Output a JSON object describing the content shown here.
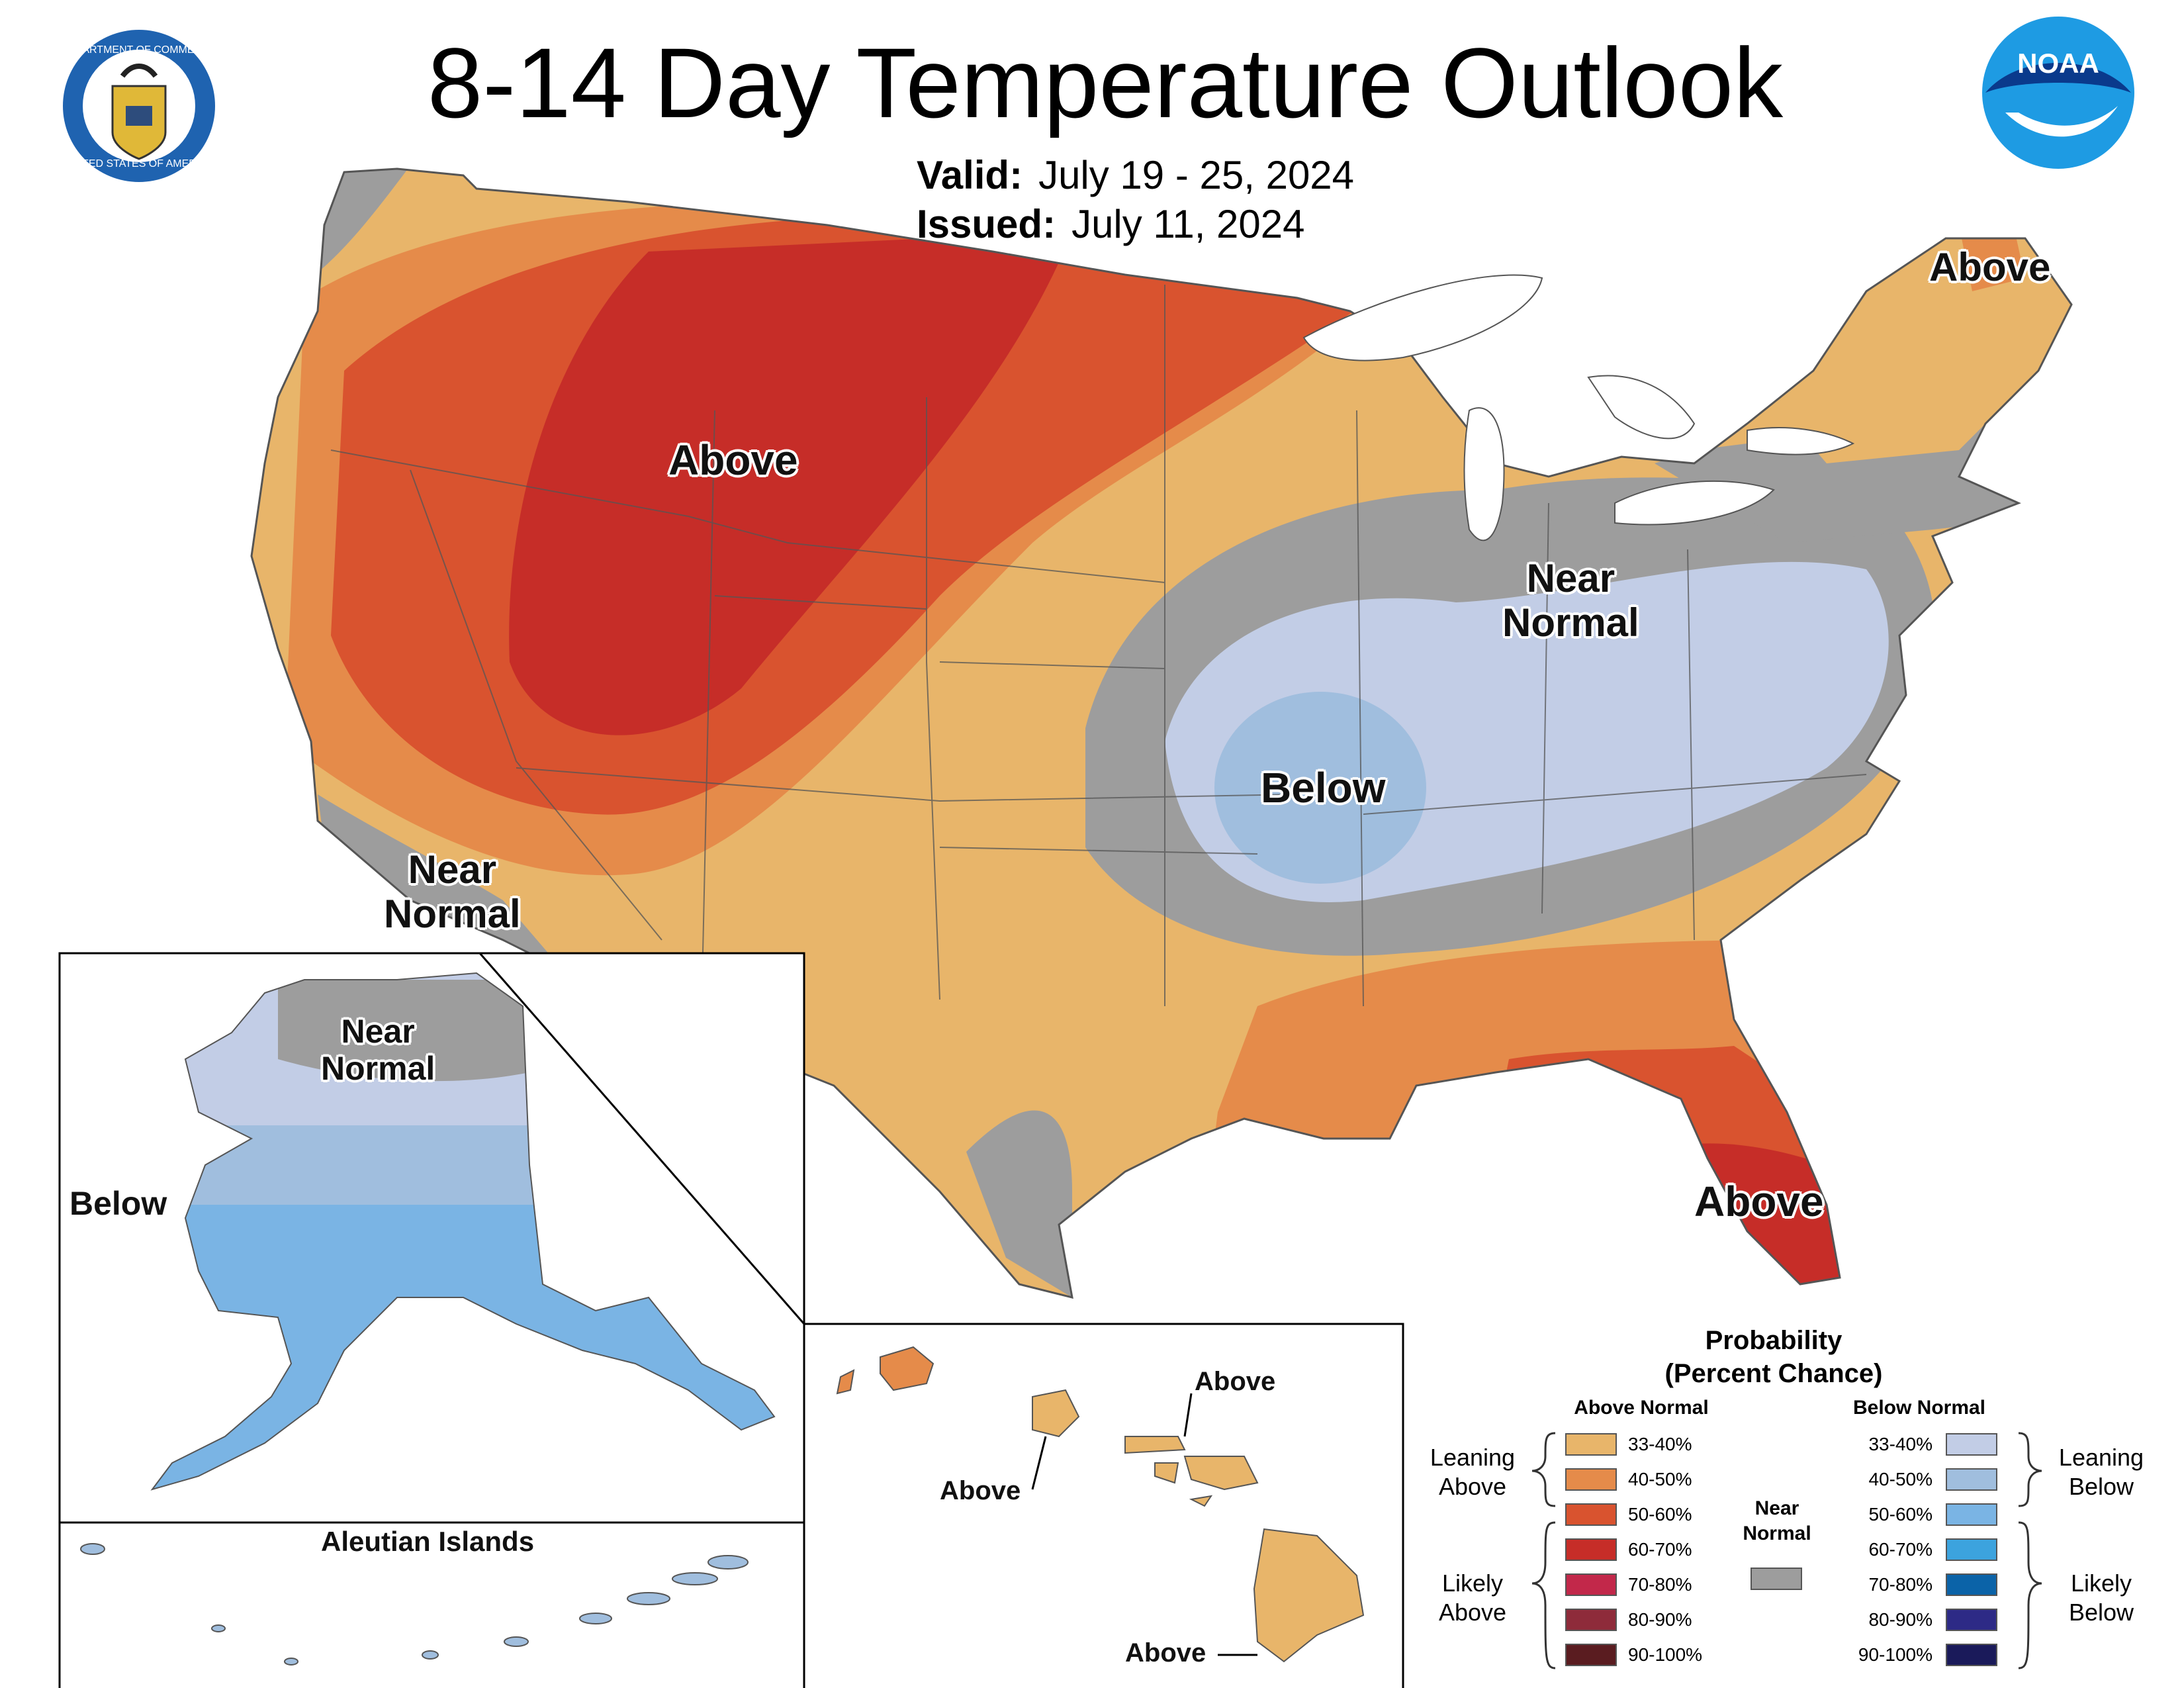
{
  "header": {
    "title": "8-14 Day Temperature Outlook",
    "valid_label": "Valid:",
    "valid_value": "July 19 - 25, 2024",
    "issued_label": "Issued:",
    "issued_value": "July 11, 2024"
  },
  "logos": {
    "commerce_top": "DEPARTMENT OF COMMERCE",
    "commerce_bottom": "UNITED STATES OF AMERICA",
    "noaa": "NOAA"
  },
  "conus_labels": {
    "northwest_above": "Above",
    "southwest_near_1": "Near",
    "southwest_near_2": "Normal",
    "midwest_near_1": "Near",
    "midwest_near_2": "Normal",
    "central_below": "Below",
    "florida_above": "Above",
    "maine_above": "Above"
  },
  "alaska_labels": {
    "north_near_1": "Near",
    "north_near_2": "Normal",
    "west_below": "Below"
  },
  "aleutian_title": "Aleutian Islands",
  "hawaii_labels": {
    "oahu_above": "Above",
    "maui_above": "Above",
    "bigisland_above": "Above"
  },
  "legend": {
    "title_1": "Probability",
    "title_2": "(Percent Chance)",
    "above_header": "Above Normal",
    "below_header": "Below Normal",
    "near_header_1": "Near",
    "near_header_2": "Normal",
    "leaning_above_1": "Leaning",
    "leaning_above_2": "Above",
    "likely_above_1": "Likely",
    "likely_above_2": "Above",
    "leaning_below_1": "Leaning",
    "leaning_below_2": "Below",
    "likely_below_1": "Likely",
    "likely_below_2": "Below",
    "above_ranges": [
      "33-40%",
      "40-50%",
      "50-60%",
      "60-70%",
      "70-80%",
      "80-90%",
      "90-100%"
    ],
    "below_ranges": [
      "33-40%",
      "40-50%",
      "50-60%",
      "60-70%",
      "70-80%",
      "80-90%",
      "90-100%"
    ],
    "above_colors": [
      "#e8b56a",
      "#e58b4a",
      "#d9532f",
      "#c62d28",
      "#c2284a",
      "#8e2b3a",
      "#5a1c20"
    ],
    "below_colors": [
      "#c2cde6",
      "#a0bede",
      "#7ab4e4",
      "#3ca3de",
      "#0b63a8",
      "#2d2a86",
      "#1a1a5a"
    ],
    "near_color": "#9d9d9d"
  },
  "colors": {
    "a33": "#e8b56a",
    "a40": "#e58b4a",
    "a50": "#d9532f",
    "a60": "#c62d28",
    "b33": "#c2cde6",
    "b40": "#a0bede",
    "b50": "#7ab4e4",
    "near": "#9d9d9d",
    "lakes": "#ffffff",
    "border": "#555555"
  }
}
